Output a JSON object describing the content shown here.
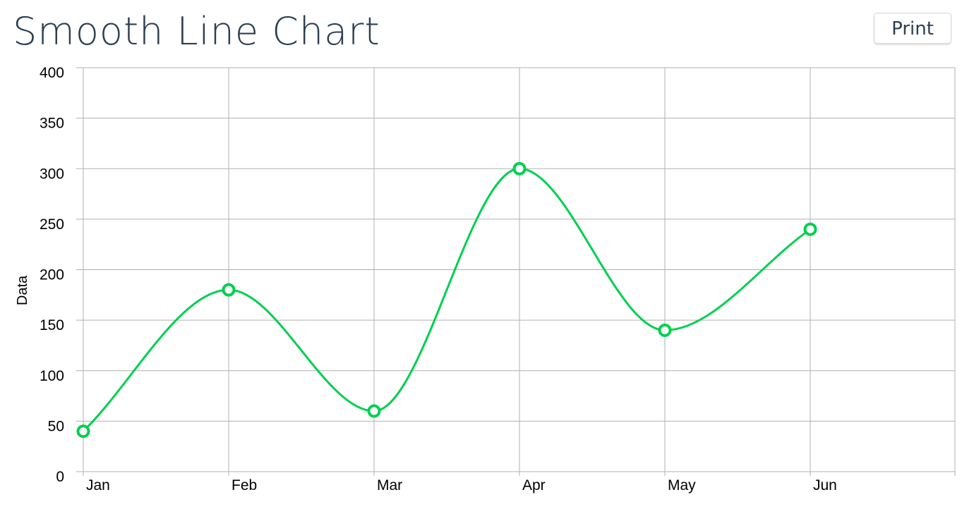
{
  "header": {
    "title": "Smooth Line Chart",
    "print_label": "Print"
  },
  "colors": {
    "series": "#00d050",
    "grid": "#b0b0b0",
    "title": "#2c3e50"
  },
  "chart_data": {
    "type": "line",
    "smooth": true,
    "categories": [
      "Jan",
      "Feb",
      "Mar",
      "Apr",
      "May",
      "Jun"
    ],
    "series": [
      {
        "values": [
          40,
          180,
          60,
          300,
          140,
          240
        ]
      }
    ],
    "title": "",
    "xlabel": "",
    "ylabel": "Data",
    "ylim": [
      0,
      400
    ],
    "yticks": [
      0,
      50,
      100,
      150,
      200,
      250,
      300,
      350,
      400
    ],
    "grid": true
  }
}
